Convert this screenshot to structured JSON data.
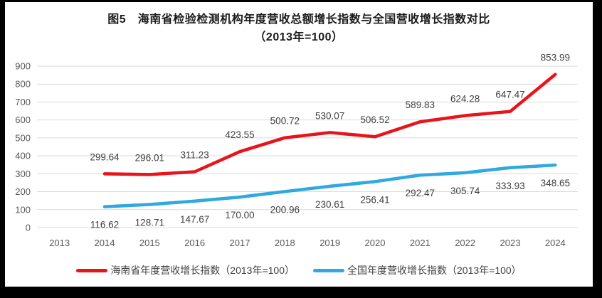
{
  "figure": {
    "title": "图5　海南省检验检测机构年度营收总额增长指数与全国营收增长指数对比",
    "subtitle": "（2013年=100）"
  },
  "chart_data": {
    "type": "line",
    "title": "图5　海南省检验检测机构年度营收总额增长指数与全国营收增长指数对比",
    "subtitle": "（2013年=100）",
    "categories": [
      "2013",
      "2014",
      "2015",
      "2016",
      "2017",
      "2018",
      "2019",
      "2020",
      "2021",
      "2022",
      "2023",
      "2024"
    ],
    "yticks": [
      0,
      100,
      200,
      300,
      400,
      500,
      600,
      700,
      800,
      900
    ],
    "ylim": [
      0,
      900
    ],
    "grid": true,
    "legend_position": "bottom",
    "colors": {
      "grid": "#d9d9d9",
      "axis_text": "#595959",
      "label_text": "#404040",
      "background": "#ffffff",
      "frame": "#000000"
    },
    "series": [
      {
        "name": "海南省年度营收增长指数（2013年=100）",
        "color": "#e8141b",
        "label_position": "above",
        "values": [
          null,
          299.64,
          296.01,
          311.23,
          423.55,
          500.72,
          530.07,
          506.52,
          589.83,
          624.28,
          647.47,
          853.99
        ],
        "labels": [
          "",
          "299.64",
          "296.01",
          "311.23",
          "423.55",
          "500.72",
          "530.07",
          "506.52",
          "589.83",
          "624.28",
          "647.47",
          "853.99"
        ]
      },
      {
        "name": "全国年度营收增长指数（2013年=100）",
        "color": "#2fa9df",
        "label_position": "below",
        "values": [
          null,
          116.62,
          128.71,
          147.67,
          170.0,
          200.96,
          230.61,
          256.41,
          292.47,
          305.74,
          333.93,
          348.65
        ],
        "labels": [
          "",
          "116.62",
          "128.71",
          "147.67",
          "170.00",
          "200.96",
          "230.61",
          "256.41",
          "292.47",
          "305.74",
          "333.93",
          "348.65"
        ]
      }
    ]
  }
}
